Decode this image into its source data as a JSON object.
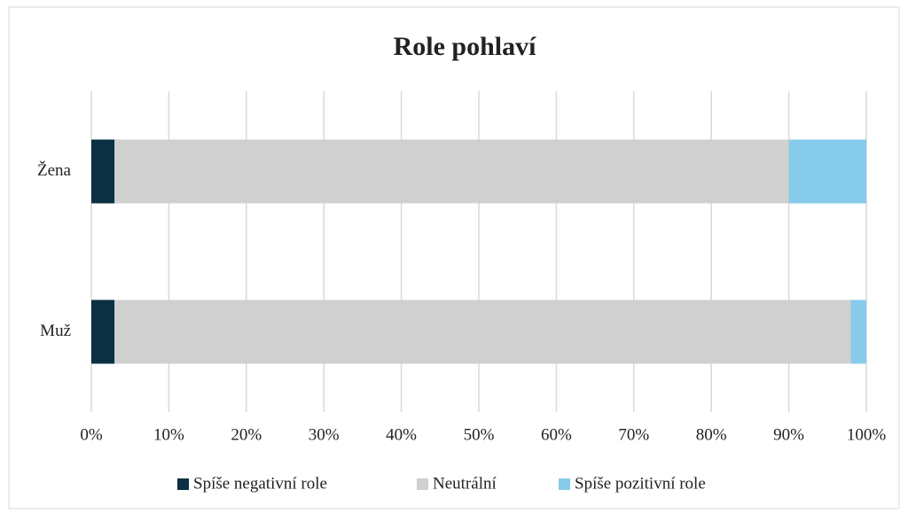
{
  "chart_data": {
    "type": "stacked_barh",
    "title": "Role pohlaví",
    "categories": [
      "Žena",
      "Muž"
    ],
    "series": [
      {
        "name": "Spíše negativní role",
        "color": "#0b3044",
        "values": [
          3,
          3
        ]
      },
      {
        "name": "Neutrální",
        "color": "#d0d0d0",
        "values": [
          87,
          95
        ]
      },
      {
        "name": "Spíše pozitivní role",
        "color": "#87cbea",
        "values": [
          10,
          2
        ]
      }
    ],
    "xlim": [
      0,
      100
    ],
    "xticks": [
      {
        "value": 0,
        "label": "0%"
      },
      {
        "value": 10,
        "label": "10%"
      },
      {
        "value": 20,
        "label": "20%"
      },
      {
        "value": 30,
        "label": "30%"
      },
      {
        "value": 40,
        "label": "40%"
      },
      {
        "value": 50,
        "label": "50%"
      },
      {
        "value": 60,
        "label": "60%"
      },
      {
        "value": 70,
        "label": "70%"
      },
      {
        "value": 80,
        "label": "80%"
      },
      {
        "value": 90,
        "label": "90%"
      },
      {
        "value": 100,
        "label": "100%"
      }
    ],
    "grid": true,
    "legend": "bottom"
  }
}
